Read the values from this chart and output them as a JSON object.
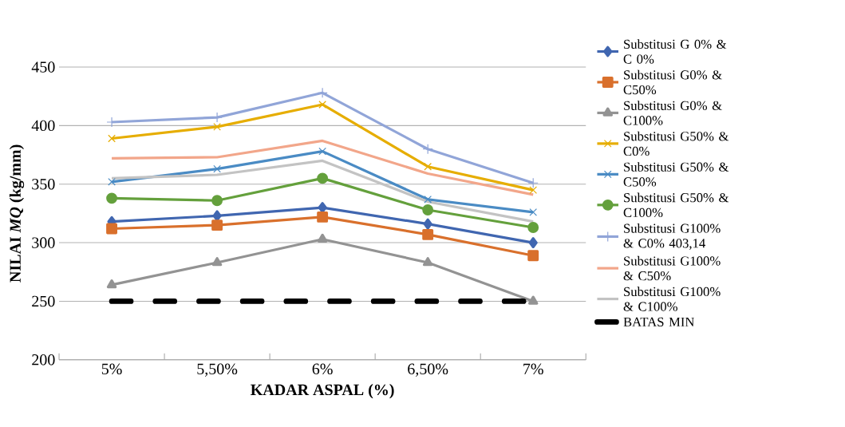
{
  "chart_data": {
    "type": "line",
    "xlabel": "KADAR ASPAL (%)",
    "ylabel": "NILAI *MQ* (kg/mm)",
    "categories": [
      "5%",
      "5,50%",
      "6%",
      "6,50%",
      "7%"
    ],
    "ylim": [
      200,
      450
    ],
    "yticks": [
      200,
      250,
      300,
      350,
      400,
      450
    ],
    "grid": "y",
    "legend": "right",
    "series": [
      {
        "name": "Substitusi G 0% & C 0%",
        "color": "#4066b0",
        "marker": "diamond",
        "values": [
          318,
          323,
          330,
          316,
          300
        ]
      },
      {
        "name": "Substitusi G0% & C50%",
        "color": "#d9702c",
        "marker": "square",
        "values": [
          312,
          315,
          322,
          307,
          289
        ]
      },
      {
        "name": "Substitusi G0% & C100%",
        "color": "#939393",
        "marker": "triangle",
        "values": [
          264,
          283,
          303,
          283,
          250
        ]
      },
      {
        "name": "Substitusi G50% & C0%",
        "color": "#e6ad00",
        "marker": "cross",
        "values": [
          389,
          399,
          418,
          365,
          345
        ]
      },
      {
        "name": "Substitusi G50% & C50%",
        "color": "#4a8bc4",
        "marker": "cross",
        "values": [
          352,
          363,
          378,
          337,
          326
        ]
      },
      {
        "name": "Substitusi G50% & C100%",
        "color": "#64a03c",
        "marker": "circle",
        "values": [
          338,
          336,
          355,
          328,
          313
        ]
      },
      {
        "name": "Substitusi G100% & C0% 403,14",
        "color": "#91a5d8",
        "marker": "plus",
        "values": [
          403,
          407,
          428,
          380,
          351
        ]
      },
      {
        "name": "Substitusi G100% & C50%",
        "color": "#f2a68a",
        "marker": "none",
        "values": [
          372,
          373,
          387,
          359,
          341
        ]
      },
      {
        "name": "Substitusi G100% & C100%",
        "color": "#c3c3c3",
        "marker": "none",
        "values": [
          355,
          358,
          370,
          335,
          318
        ]
      },
      {
        "name": "BATAS MIN",
        "color": "#000000",
        "marker": "none",
        "line_style": "dashed",
        "values": [
          250,
          250,
          250,
          250,
          250
        ]
      }
    ]
  }
}
